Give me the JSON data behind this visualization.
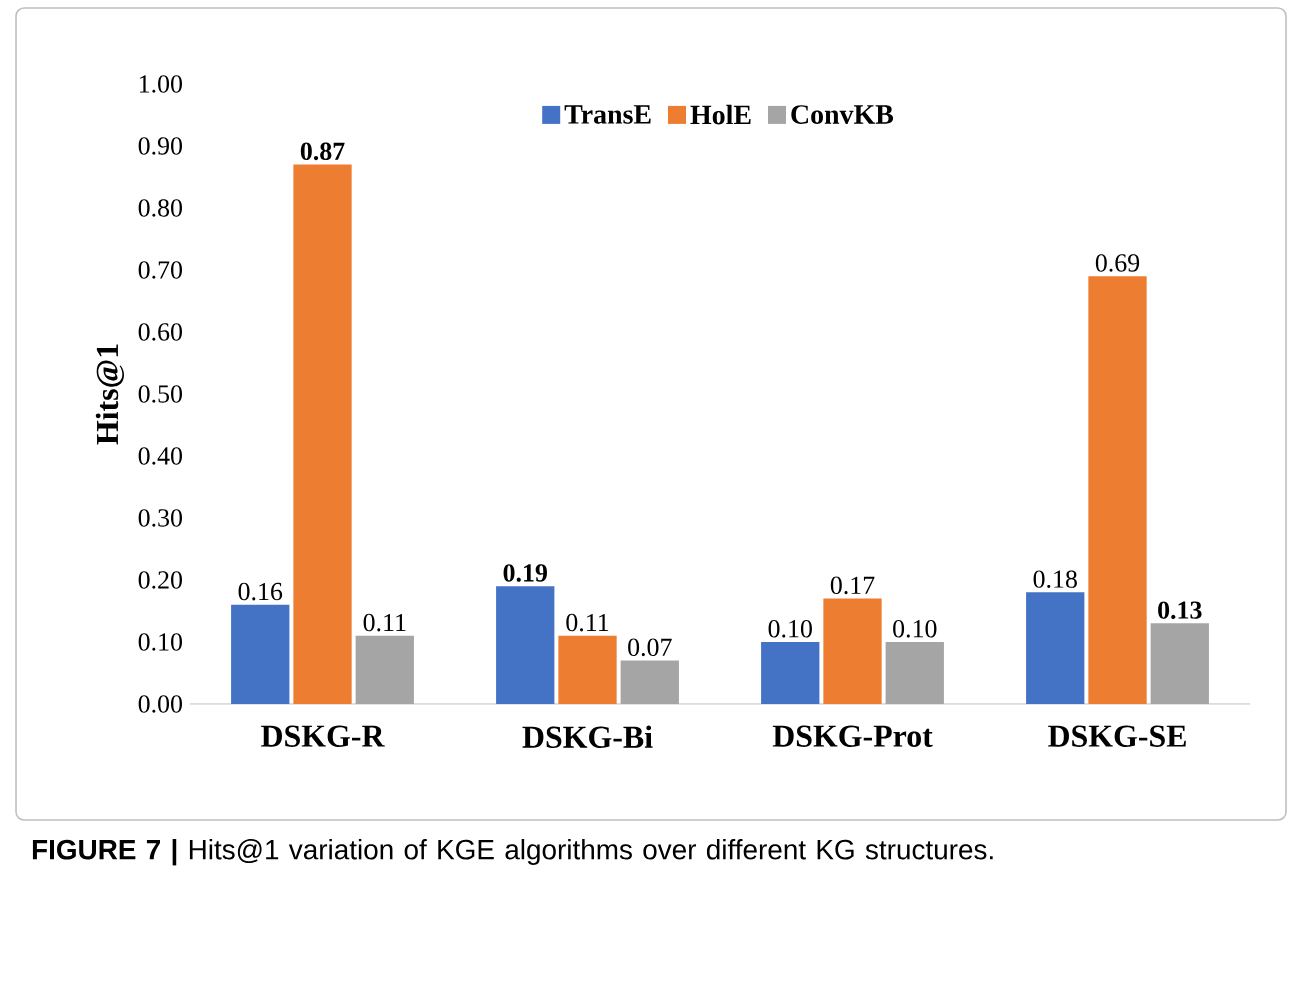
{
  "chart_data": {
    "type": "bar",
    "ylabel": "Hits@1",
    "categories": [
      "DSKG-R",
      "DSKG-Bi",
      "DSKG-Prot",
      "DSKG-SE"
    ],
    "series": [
      {
        "name": "TransE",
        "color": "#4472c4",
        "values": [
          0.16,
          0.19,
          0.1,
          0.18
        ],
        "value_labels": [
          "0.16",
          "**0.19**",
          "0.10",
          "0.18"
        ]
      },
      {
        "name": "HolE",
        "color": "#ed7d31",
        "values": [
          0.87,
          0.11,
          0.17,
          0.69
        ],
        "value_labels": [
          "**0.87**",
          "0.11",
          "0.17",
          "0.69"
        ]
      },
      {
        "name": "ConvKB",
        "color": "#a5a5a5",
        "values": [
          0.11,
          0.07,
          0.1,
          0.13
        ],
        "value_labels": [
          "0.11",
          "0.07",
          "0.10",
          "**0.13**"
        ]
      }
    ],
    "ylim": [
      0,
      1
    ],
    "yticks": [
      {
        "value": 0,
        "label": "0.00"
      },
      {
        "value": 0.1,
        "label": "0.10"
      },
      {
        "value": 0.2,
        "label": "0.20"
      },
      {
        "value": 0.3,
        "label": "0.30"
      },
      {
        "value": 0.4,
        "label": "0.40"
      },
      {
        "value": 0.5,
        "label": "0.50"
      },
      {
        "value": 0.6,
        "label": "0.60"
      },
      {
        "value": 0.7,
        "label": "0.70"
      },
      {
        "value": 0.8,
        "label": "0.80"
      },
      {
        "value": 0.9,
        "label": "0.90"
      },
      {
        "value": 1,
        "label": "1.00"
      }
    ],
    "legend": "top",
    "grid": false,
    "annotations": [
      "**FIGURE 7 |** Hits@1 variation of KGE algorithms over different KG structures."
    ]
  }
}
